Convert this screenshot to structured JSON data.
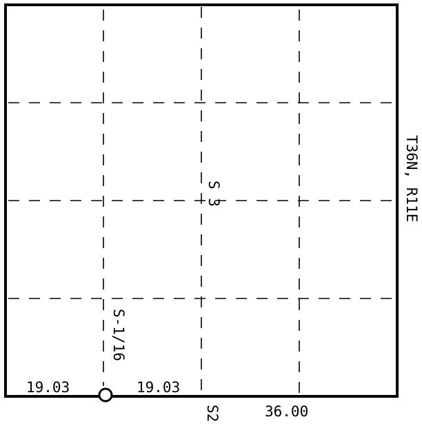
{
  "section_label": "S 3",
  "township_label": "T36N, R11E",
  "sixteenth_corner_label": "S-1/16",
  "bottom_left_distance": "19.03",
  "bottom_middle_distance": "19.03",
  "bottom_corner_label": "S2",
  "bottom_right_distance": "36.00",
  "colors": {
    "line": "#000000",
    "background": "#ffffff"
  }
}
